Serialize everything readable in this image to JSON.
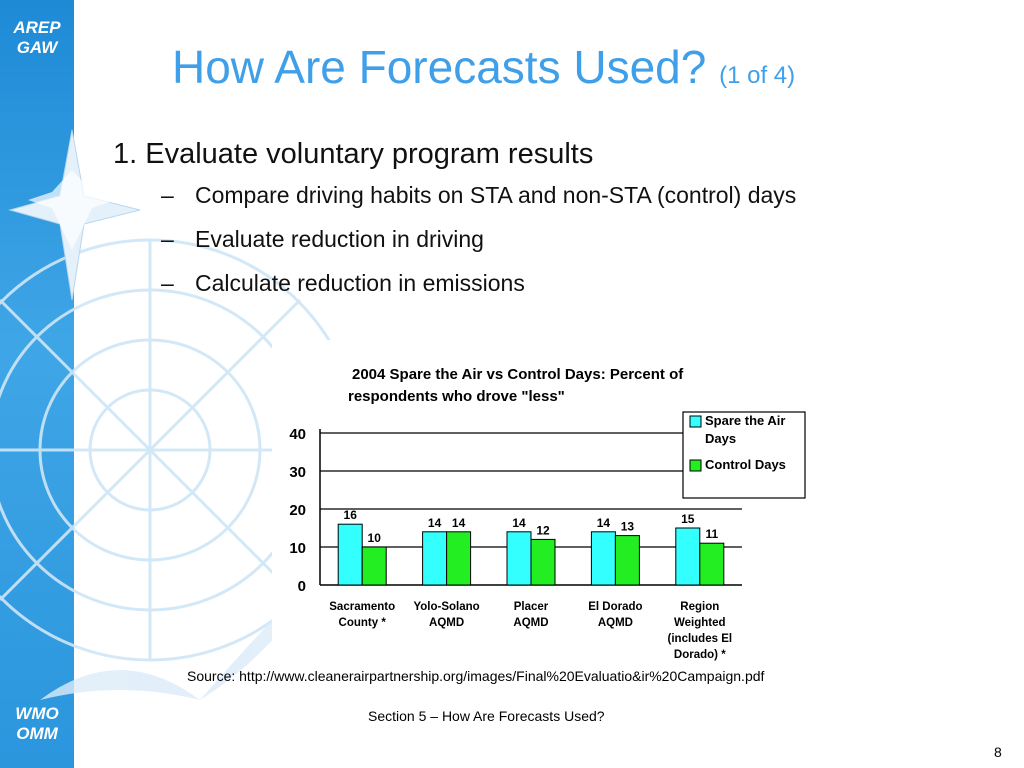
{
  "sidebar": {
    "top_label": [
      "AREP",
      "GAW"
    ],
    "bottom_label": [
      "WMO",
      "OMM"
    ]
  },
  "slide": {
    "title": "How Are Forecasts Used?",
    "title_sub": "(1 of 4)",
    "bullet_1": "1. Evaluate voluntary program results",
    "sub_bullets": [
      "Compare driving habits on STA and non-STA (control) days",
      "Evaluate reduction in driving",
      "Calculate reduction in emissions"
    ],
    "dash": "–",
    "source": "Source:  http://www.cleanerairpartnership.org/images/Final%20Evaluatio&ir%20Campaign.pdf",
    "footer": "Section 5 – How Are Forecasts Used?",
    "page_number": "8"
  },
  "chart_data": {
    "type": "bar",
    "title": [
      "2004 Spare the Air vs Control Days:  Percent of",
      "respondents who drove \"less\""
    ],
    "categories": [
      [
        "Sacramento",
        "County *"
      ],
      [
        "Yolo-Solano",
        "AQMD"
      ],
      [
        "Placer",
        "AQMD"
      ],
      [
        "El Dorado",
        "AQMD"
      ],
      [
        "Region",
        "Weighted",
        "(includes El",
        "Dorado) *"
      ]
    ],
    "series": [
      {
        "name": "Spare the Air Days",
        "legend_lines": [
          "Spare the Air",
          "Days"
        ],
        "values": [
          16,
          14,
          14,
          14,
          15
        ],
        "color": "#33ffff"
      },
      {
        "name": "Control Days",
        "legend_lines": [
          "Control Days"
        ],
        "values": [
          10,
          14,
          12,
          13,
          11
        ],
        "color": "#22ee22"
      }
    ],
    "y_ticks": [
      0,
      10,
      20,
      30,
      40
    ],
    "ylim": [
      0,
      40
    ],
    "grid": true,
    "legend_position": "top-right"
  }
}
